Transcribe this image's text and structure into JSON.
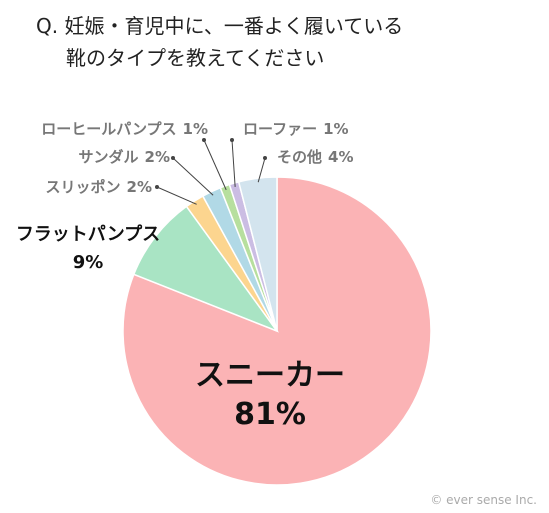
{
  "question": {
    "line1": "Q. 妊娠・育児中に、一番よく履いている",
    "line2": "靴のタイプを教えてください"
  },
  "copyright": "© ever sense Inc.",
  "chart_data": {
    "type": "pie",
    "title": "Q. 妊娠・育児中に、一番よく履いている 靴のタイプを教えてください",
    "start": "12 o'clock",
    "direction": "clockwise",
    "unit": "%",
    "slices": [
      {
        "label": "スニーカー",
        "value": 81,
        "value_label": "81%",
        "color": "#fbb3b5"
      },
      {
        "label": "フラットパンプス",
        "value": 9,
        "value_label": "9%",
        "color": "#a9e4c4"
      },
      {
        "label": "スリッポン",
        "value": 2,
        "value_label": "2%",
        "color": "#fcd58f"
      },
      {
        "label": "サンダル",
        "value": 2,
        "value_label": "2%",
        "color": "#b1d9e6"
      },
      {
        "label": "ローヒールパンプス",
        "value": 1,
        "value_label": "1%",
        "color": "#b7df9e"
      },
      {
        "label": "ローファー",
        "value": 1,
        "value_label": "1%",
        "color": "#cbbde3"
      },
      {
        "label": "その他",
        "value": 4,
        "value_label": "4%",
        "color": "#d3e4ee"
      }
    ]
  }
}
